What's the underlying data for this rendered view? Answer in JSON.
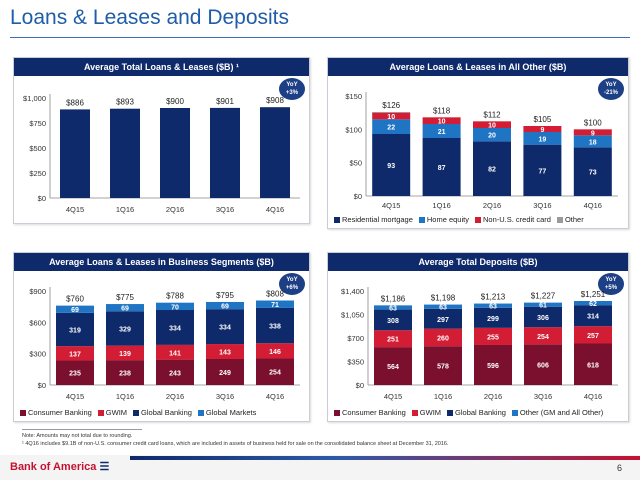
{
  "page": {
    "title": "Loans & Leases and Deposits",
    "notes": [
      "Note: Amounts may not total due to rounding.",
      "¹ 4Q16 includes $9.1B of non-U.S. consumer credit card loans, which are included in assets of business held for sale on the consolidated balance sheet at December 31, 2016."
    ],
    "logo": "Bank of America",
    "page_number": "6"
  },
  "chart_data": [
    {
      "id": "total_loans",
      "type": "bar",
      "title": "Average Total Loans & Leases ($B) ¹",
      "categories": [
        "4Q15",
        "1Q16",
        "2Q16",
        "3Q16",
        "4Q16"
      ],
      "series": [
        {
          "name": "",
          "values": [
            886,
            893,
            900,
            901,
            908
          ],
          "color": "#0f2a6b"
        }
      ],
      "totals": [
        "$886",
        "$893",
        "$900",
        "$901",
        "$908"
      ],
      "ylim": [
        0,
        1000
      ],
      "yticks": [
        0,
        250,
        500,
        750,
        1000
      ],
      "ytick_labels": [
        "$0",
        "$250",
        "$500",
        "$750",
        "$1,000"
      ],
      "yoy": [
        "YoY",
        "+3%"
      ],
      "grid": false
    },
    {
      "id": "all_other",
      "type": "bar",
      "stacked": true,
      "title": "Average Loans & Leases in All Other ($B)",
      "categories": [
        "4Q15",
        "1Q16",
        "2Q16",
        "3Q16",
        "4Q16"
      ],
      "series": [
        {
          "name": "Residential mortgage",
          "values": [
            93,
            87,
            82,
            77,
            73
          ],
          "labels": [
            "93",
            "87",
            "82",
            "77",
            "73"
          ],
          "color": "#0f2a6b"
        },
        {
          "name": "Home equity",
          "values": [
            22,
            21,
            20,
            19,
            18
          ],
          "labels": [
            "22",
            "21",
            "20",
            "19",
            "18"
          ],
          "color": "#1f74c4"
        },
        {
          "name": "Non-U.S. credit card",
          "values": [
            10,
            10,
            10,
            9,
            9
          ],
          "labels": [
            "10",
            "10",
            "10",
            "9",
            "9"
          ],
          "color": "#d31d35"
        },
        {
          "name": "Other",
          "values": [
            1,
            0,
            0,
            0,
            0
          ],
          "labels": [
            "",
            "",
            "",
            "",
            ""
          ],
          "color": "#9b9b9b"
        }
      ],
      "totals": [
        "$126",
        "$118",
        "$112",
        "$105",
        "$100"
      ],
      "ylim": [
        0,
        150
      ],
      "yticks": [
        0,
        50,
        100,
        150
      ],
      "ytick_labels": [
        "$0",
        "$50",
        "$100",
        "$150"
      ],
      "yoy": [
        "YoY",
        "-21%"
      ],
      "legend": "bottom"
    },
    {
      "id": "segments",
      "type": "bar",
      "stacked": true,
      "title": "Average Loans & Leases in Business Segments ($B)",
      "categories": [
        "4Q15",
        "1Q16",
        "2Q16",
        "3Q16",
        "4Q16"
      ],
      "series": [
        {
          "name": "Consumer Banking",
          "values": [
            235,
            238,
            243,
            249,
            254
          ],
          "labels": [
            "235",
            "238",
            "243",
            "249",
            "254"
          ],
          "color": "#7a0f2e"
        },
        {
          "name": "GWIM",
          "values": [
            137,
            139,
            141,
            143,
            146
          ],
          "labels": [
            "137",
            "139",
            "141",
            "143",
            "146"
          ],
          "color": "#d31d35"
        },
        {
          "name": "Global Banking",
          "values": [
            319,
            329,
            334,
            334,
            338
          ],
          "labels": [
            "319",
            "329",
            "334",
            "334",
            "338"
          ],
          "color": "#0f2a6b"
        },
        {
          "name": "Global Markets",
          "values": [
            69,
            69,
            70,
            69,
            71
          ],
          "labels": [
            "69",
            "69",
            "70",
            "69",
            "71"
          ],
          "color": "#1f74c4"
        }
      ],
      "totals": [
        "$760",
        "$775",
        "$788",
        "$795",
        "$808"
      ],
      "ylim": [
        0,
        900
      ],
      "yticks": [
        0,
        300,
        600,
        900
      ],
      "ytick_labels": [
        "$0",
        "$300",
        "$600",
        "$900"
      ],
      "yoy": [
        "YoY",
        "+6%"
      ],
      "legend": "bottom"
    },
    {
      "id": "deposits",
      "type": "bar",
      "stacked": true,
      "title": "Average Total Deposits ($B)",
      "categories": [
        "4Q15",
        "1Q16",
        "2Q16",
        "3Q16",
        "4Q16"
      ],
      "series": [
        {
          "name": "Consumer Banking",
          "values": [
            564,
            578,
            596,
            606,
            618
          ],
          "labels": [
            "564",
            "578",
            "596",
            "606",
            "618"
          ],
          "color": "#7a0f2e"
        },
        {
          "name": "GWIM",
          "values": [
            251,
            260,
            255,
            254,
            257
          ],
          "labels": [
            "251",
            "260",
            "255",
            "254",
            "257"
          ],
          "color": "#d31d35"
        },
        {
          "name": "Global Banking",
          "values": [
            308,
            297,
            299,
            306,
            314
          ],
          "labels": [
            "308",
            "297",
            "299",
            "306",
            "314"
          ],
          "color": "#0f2a6b"
        },
        {
          "name": "Other (GM and All Other)",
          "values": [
            63,
            63,
            63,
            61,
            62
          ],
          "labels": [
            "63",
            "63",
            "63",
            "61",
            "62"
          ],
          "color": "#1f74c4"
        }
      ],
      "totals": [
        "$1,186",
        "$1,198",
        "$1,213",
        "$1,227",
        "$1,251"
      ],
      "ylim": [
        0,
        1400
      ],
      "yticks": [
        0,
        350,
        700,
        1050,
        1400
      ],
      "ytick_labels": [
        "$0",
        "$350",
        "$700",
        "$1,050",
        "$1,400"
      ],
      "yoy": [
        "YoY",
        "+5%"
      ],
      "legend": "bottom"
    }
  ]
}
